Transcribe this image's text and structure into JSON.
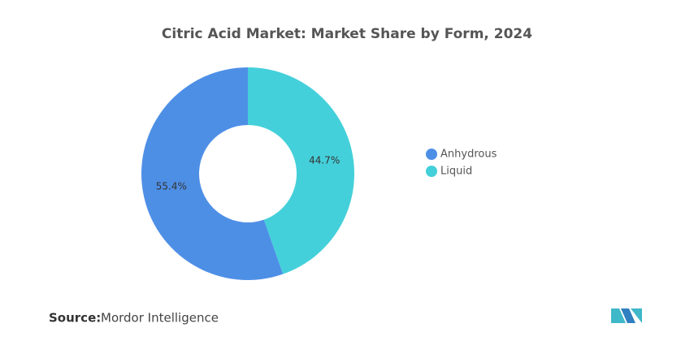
{
  "chart_data": {
    "type": "donut",
    "title": "Citric Acid Market: Market Share by Form, 2024",
    "categories": [
      "Anhydrous",
      "Liquid"
    ],
    "values": [
      55.4,
      44.7
    ],
    "value_labels": [
      "55.4%",
      "44.7%"
    ],
    "colors": [
      "#4e8fe6",
      "#44d0da"
    ]
  },
  "footer": {
    "source_label": "Source:",
    "source": "Mordor Intelligence"
  }
}
